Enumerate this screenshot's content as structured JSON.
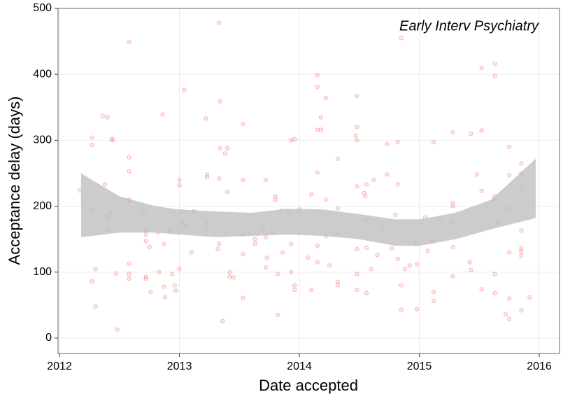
{
  "chart_data": {
    "type": "scatter",
    "annotation": "Early Interv Psychiatry",
    "x_label": "Date accepted",
    "y_label": "Acceptance delay (days)",
    "xlim": [
      2011.988,
      2016.169
    ],
    "ylim": [
      -23.4,
      500
    ],
    "xticks": [
      2012,
      2013,
      2014,
      2015,
      2016
    ],
    "yticks": [
      0,
      100,
      200,
      300,
      400,
      500
    ],
    "grid": true,
    "point_color": "#f8766d",
    "band_color": "#bfbfbf",
    "x": [
      2012.17,
      2012.27,
      2012.27,
      2012.27,
      2012.27,
      2012.3,
      2012.3,
      2012.36,
      2012.38,
      2012.4,
      2012.4,
      2012.42,
      2012.41,
      2012.44,
      2012.44,
      2012.47,
      2012.48,
      2012.58,
      2012.58,
      2012.58,
      2012.58,
      2012.58,
      2012.58,
      2012.58,
      2012.58,
      2012.7,
      2012.72,
      2012.72,
      2012.72,
      2012.72,
      2012.72,
      2012.75,
      2012.76,
      2012.82,
      2012.83,
      2012.86,
      2012.87,
      2012.87,
      2012.88,
      2012.92,
      2012.94,
      2012.95,
      2012.96,
      2012.97,
      2013.0,
      2013.0,
      2013.0,
      2013.02,
      2013.02,
      2013.04,
      2013.05,
      2013.1,
      2013.12,
      2013.22,
      2013.23,
      2013.23,
      2013.23,
      2013.23,
      2013.32,
      2013.33,
      2013.34,
      2013.34,
      2013.33,
      2013.33,
      2013.36,
      2013.38,
      2013.4,
      2013.4,
      2013.4,
      2013.42,
      2013.42,
      2013.45,
      2013.53,
      2013.53,
      2013.53,
      2013.53,
      2013.53,
      2013.63,
      2013.63,
      2013.7,
      2013.72,
      2013.72,
      2013.73,
      2013.72,
      2013.78,
      2013.8,
      2013.8,
      2013.82,
      2013.82,
      2013.85,
      2013.86,
      2013.92,
      2013.93,
      2013.93,
      2013.93,
      2013.96,
      2013.96,
      2013.96,
      2014.0,
      2014.07,
      2014.1,
      2014.1,
      2014.15,
      2014.15,
      2014.15,
      2014.15,
      2014.15,
      2014.15,
      2014.18,
      2014.18,
      2014.22,
      2014.22,
      2014.22,
      2014.25,
      2014.32,
      2014.32,
      2014.32,
      2014.32,
      2014.32,
      2014.48,
      2014.48,
      2014.47,
      2014.48,
      2014.48,
      2014.48,
      2014.48,
      2014.48,
      2014.54,
      2014.55,
      2014.56,
      2014.55,
      2014.56,
      2014.56,
      2014.6,
      2014.62,
      2014.65,
      2014.7,
      2014.73,
      2014.73,
      2014.77,
      2014.8,
      2014.82,
      2014.82,
      2014.82,
      2014.85,
      2014.85,
      2014.85,
      2014.88,
      2014.9,
      2014.92,
      2014.97,
      2014.98,
      2014.98,
      2015.05,
      2015.07,
      2015.1,
      2015.12,
      2015.12,
      2015.12,
      2015.17,
      2015.28,
      2015.28,
      2015.28,
      2015.28,
      2015.28,
      2015.28,
      2015.42,
      2015.43,
      2015.43,
      2015.48,
      2015.52,
      2015.52,
      2015.52,
      2015.52,
      2015.62,
      2015.63,
      2015.63,
      2015.63,
      2015.63,
      2015.63,
      2015.65,
      2015.72,
      2015.75,
      2015.75,
      2015.75,
      2015.75,
      2015.75,
      2015.75,
      2015.85,
      2015.85,
      2015.85,
      2015.85,
      2015.85,
      2015.85,
      2015.85,
      2015.85,
      2015.92
    ],
    "y": [
      224,
      304,
      293,
      193,
      86,
      105,
      48,
      337,
      233,
      335,
      183,
      190,
      164,
      302,
      300,
      98,
      13,
      449,
      274,
      253,
      210,
      208,
      113,
      97,
      90,
      193,
      163,
      157,
      147,
      93,
      90,
      138,
      70,
      160,
      100,
      339,
      143,
      78,
      62,
      163,
      97,
      190,
      80,
      72,
      105,
      240,
      232,
      192,
      175,
      376,
      170,
      130,
      192,
      333,
      248,
      244,
      175,
      165,
      135,
      478,
      359,
      288,
      242,
      143,
      26,
      280,
      288,
      222,
      160,
      100,
      93,
      92,
      325,
      240,
      157,
      127,
      61,
      150,
      143,
      165,
      240,
      153,
      122,
      107,
      160,
      215,
      210,
      35,
      97,
      193,
      130,
      190,
      300,
      143,
      100,
      302,
      80,
      73,
      195,
      122,
      218,
      73,
      399,
      381,
      316,
      251,
      140,
      115,
      335,
      316,
      364,
      210,
      155,
      110,
      272,
      197,
      160,
      85,
      80,
      367,
      320,
      307,
      300,
      230,
      135,
      97,
      73,
      220,
      215,
      233,
      180,
      137,
      68,
      105,
      240,
      126,
      166,
      294,
      248,
      136,
      187,
      297,
      233,
      120,
      455,
      80,
      43,
      105,
      150,
      110,
      145,
      112,
      44,
      183,
      132,
      146,
      297,
      70,
      56,
      182,
      312,
      205,
      200,
      175,
      138,
      94,
      115,
      310,
      103,
      248,
      410,
      315,
      223,
      74,
      210,
      416,
      398,
      215,
      97,
      68,
      175,
      36,
      290,
      247,
      196,
      130,
      60,
      29,
      265,
      250,
      228,
      163,
      136,
      132,
      125,
      42,
      62
    ],
    "band": {
      "x": [
        2012.18,
        2012.5,
        2012.8,
        2013.0,
        2013.3,
        2013.6,
        2013.9,
        2014.2,
        2014.5,
        2014.8,
        2015.0,
        2015.3,
        2015.6,
        2015.97
      ],
      "upper": [
        250,
        215,
        200,
        195,
        192,
        190,
        196,
        195,
        188,
        180,
        180,
        190,
        210,
        272
      ],
      "lower": [
        153,
        160,
        160,
        157,
        153,
        155,
        157,
        155,
        150,
        140,
        140,
        150,
        165,
        182
      ]
    }
  }
}
